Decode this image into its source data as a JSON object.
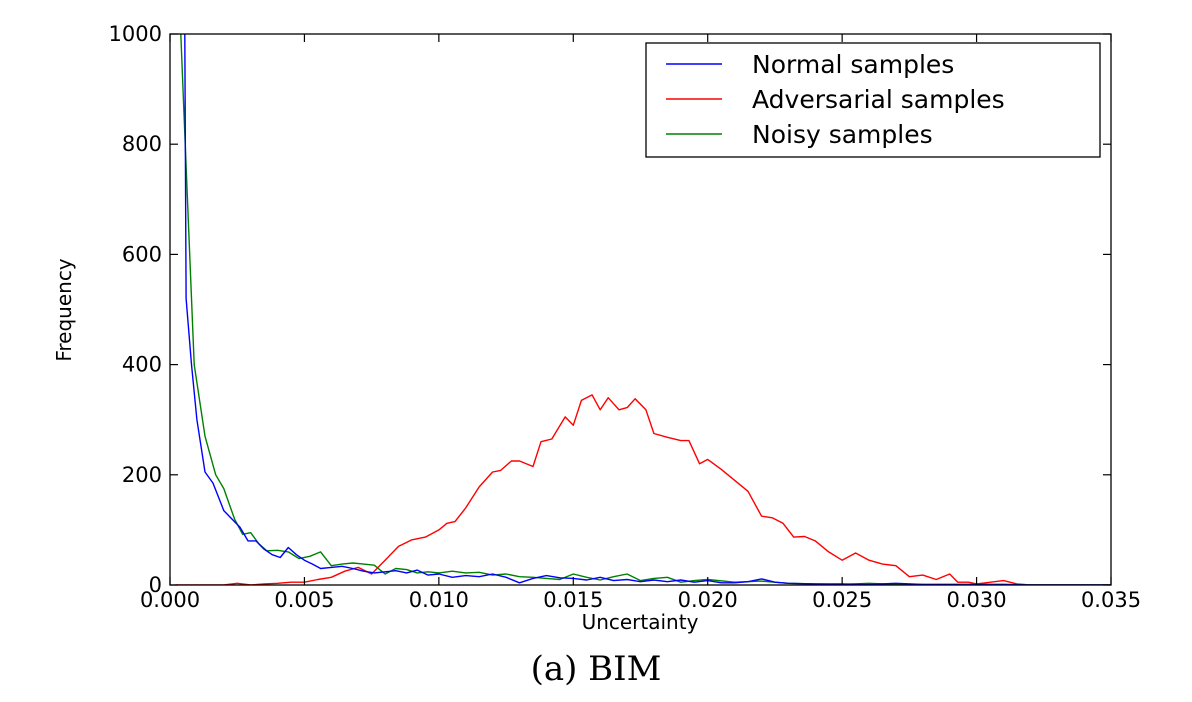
{
  "caption": "(a) BIM",
  "chart_data": {
    "type": "line",
    "title": "",
    "xlabel": "Uncertainty",
    "ylabel": "Frequency",
    "xlim": [
      0.0,
      0.035
    ],
    "ylim": [
      0,
      1000
    ],
    "xticks": [
      0.0,
      0.005,
      0.01,
      0.015,
      0.02,
      0.025,
      0.03,
      0.035
    ],
    "xtick_labels": [
      "0.000",
      "0.005",
      "0.010",
      "0.015",
      "0.020",
      "0.025",
      "0.030",
      "0.035"
    ],
    "yticks": [
      0,
      200,
      400,
      600,
      800,
      1000
    ],
    "ytick_labels": [
      "0",
      "200",
      "400",
      "600",
      "800",
      "1000"
    ],
    "grid": false,
    "legend_position": "top-right",
    "series": [
      {
        "name": "Normal samples",
        "color": "#0000ff",
        "points": [
          [
            0.00055,
            1000
          ],
          [
            0.0006,
            520
          ],
          [
            0.0008,
            400
          ],
          [
            0.001,
            300
          ],
          [
            0.0013,
            205
          ],
          [
            0.0016,
            185
          ],
          [
            0.002,
            135
          ],
          [
            0.0023,
            120
          ],
          [
            0.0026,
            105
          ],
          [
            0.0029,
            80
          ],
          [
            0.0032,
            80
          ],
          [
            0.0035,
            65
          ],
          [
            0.0038,
            55
          ],
          [
            0.0041,
            50
          ],
          [
            0.0044,
            68
          ],
          [
            0.0047,
            55
          ],
          [
            0.005,
            45
          ],
          [
            0.0053,
            38
          ],
          [
            0.0056,
            30
          ],
          [
            0.006,
            32
          ],
          [
            0.0064,
            34
          ],
          [
            0.0068,
            30
          ],
          [
            0.0072,
            25
          ],
          [
            0.0076,
            22
          ],
          [
            0.008,
            24
          ],
          [
            0.0084,
            26
          ],
          [
            0.0088,
            22
          ],
          [
            0.0092,
            27
          ],
          [
            0.0096,
            18
          ],
          [
            0.01,
            20
          ],
          [
            0.0105,
            14
          ],
          [
            0.011,
            17
          ],
          [
            0.0115,
            15
          ],
          [
            0.012,
            20
          ],
          [
            0.0125,
            14
          ],
          [
            0.013,
            4
          ],
          [
            0.0135,
            12
          ],
          [
            0.014,
            17
          ],
          [
            0.0145,
            13
          ],
          [
            0.015,
            12
          ],
          [
            0.0155,
            9
          ],
          [
            0.016,
            14
          ],
          [
            0.0165,
            8
          ],
          [
            0.017,
            10
          ],
          [
            0.0175,
            6
          ],
          [
            0.018,
            9
          ],
          [
            0.0185,
            6
          ],
          [
            0.019,
            9
          ],
          [
            0.0195,
            5
          ],
          [
            0.02,
            8
          ],
          [
            0.0205,
            4
          ],
          [
            0.021,
            4
          ],
          [
            0.0215,
            6
          ],
          [
            0.022,
            11
          ],
          [
            0.0225,
            5
          ],
          [
            0.023,
            3
          ],
          [
            0.024,
            2
          ],
          [
            0.025,
            2
          ],
          [
            0.026,
            1
          ],
          [
            0.027,
            3
          ],
          [
            0.028,
            1
          ],
          [
            0.029,
            1
          ],
          [
            0.03,
            1
          ],
          [
            0.031,
            1
          ],
          [
            0.032,
            0
          ],
          [
            0.033,
            0
          ],
          [
            0.034,
            0
          ],
          [
            0.035,
            0
          ]
        ]
      },
      {
        "name": "Adversarial samples",
        "color": "#ff0000",
        "points": [
          [
            0.0002,
            0
          ],
          [
            0.001,
            0
          ],
          [
            0.0015,
            0
          ],
          [
            0.002,
            0
          ],
          [
            0.0025,
            3
          ],
          [
            0.003,
            0
          ],
          [
            0.0035,
            2
          ],
          [
            0.004,
            3
          ],
          [
            0.0045,
            5
          ],
          [
            0.005,
            5
          ],
          [
            0.0055,
            10
          ],
          [
            0.006,
            14
          ],
          [
            0.0065,
            25
          ],
          [
            0.007,
            32
          ],
          [
            0.0075,
            20
          ],
          [
            0.008,
            45
          ],
          [
            0.0085,
            70
          ],
          [
            0.009,
            82
          ],
          [
            0.0095,
            87
          ],
          [
            0.01,
            100
          ],
          [
            0.0103,
            112
          ],
          [
            0.0106,
            115
          ],
          [
            0.011,
            140
          ],
          [
            0.0115,
            178
          ],
          [
            0.012,
            205
          ],
          [
            0.0123,
            208
          ],
          [
            0.0127,
            225
          ],
          [
            0.013,
            225
          ],
          [
            0.0135,
            215
          ],
          [
            0.0138,
            260
          ],
          [
            0.0142,
            265
          ],
          [
            0.0147,
            305
          ],
          [
            0.015,
            290
          ],
          [
            0.0153,
            335
          ],
          [
            0.0157,
            345
          ],
          [
            0.016,
            318
          ],
          [
            0.0163,
            340
          ],
          [
            0.0167,
            318
          ],
          [
            0.017,
            322
          ],
          [
            0.0173,
            338
          ],
          [
            0.0177,
            318
          ],
          [
            0.018,
            275
          ],
          [
            0.0185,
            268
          ],
          [
            0.019,
            262
          ],
          [
            0.0193,
            262
          ],
          [
            0.0197,
            220
          ],
          [
            0.02,
            228
          ],
          [
            0.0205,
            210
          ],
          [
            0.021,
            190
          ],
          [
            0.0215,
            170
          ],
          [
            0.022,
            125
          ],
          [
            0.0224,
            122
          ],
          [
            0.0228,
            112
          ],
          [
            0.0232,
            87
          ],
          [
            0.0236,
            88
          ],
          [
            0.024,
            80
          ],
          [
            0.0245,
            60
          ],
          [
            0.025,
            45
          ],
          [
            0.0255,
            58
          ],
          [
            0.026,
            45
          ],
          [
            0.0265,
            38
          ],
          [
            0.027,
            35
          ],
          [
            0.0275,
            15
          ],
          [
            0.028,
            18
          ],
          [
            0.0285,
            10
          ],
          [
            0.029,
            20
          ],
          [
            0.0293,
            5
          ],
          [
            0.0297,
            5
          ],
          [
            0.03,
            2
          ],
          [
            0.031,
            8
          ],
          [
            0.0315,
            2
          ],
          [
            0.032,
            0
          ],
          [
            0.033,
            0
          ],
          [
            0.034,
            0
          ],
          [
            0.035,
            0
          ]
        ]
      },
      {
        "name": "Noisy samples",
        "color": "#008000",
        "points": [
          [
            0.0004,
            1000
          ],
          [
            0.0006,
            760
          ],
          [
            0.0009,
            400
          ],
          [
            0.0013,
            270
          ],
          [
            0.0017,
            200
          ],
          [
            0.002,
            175
          ],
          [
            0.0024,
            120
          ],
          [
            0.0027,
            92
          ],
          [
            0.003,
            95
          ],
          [
            0.0033,
            75
          ],
          [
            0.0036,
            62
          ],
          [
            0.004,
            63
          ],
          [
            0.0044,
            60
          ],
          [
            0.0048,
            48
          ],
          [
            0.0052,
            52
          ],
          [
            0.0056,
            60
          ],
          [
            0.006,
            35
          ],
          [
            0.0064,
            38
          ],
          [
            0.0068,
            40
          ],
          [
            0.0072,
            38
          ],
          [
            0.0076,
            36
          ],
          [
            0.008,
            20
          ],
          [
            0.0084,
            30
          ],
          [
            0.0088,
            28
          ],
          [
            0.0092,
            22
          ],
          [
            0.0096,
            24
          ],
          [
            0.01,
            22
          ],
          [
            0.0105,
            25
          ],
          [
            0.011,
            22
          ],
          [
            0.0115,
            23
          ],
          [
            0.012,
            18
          ],
          [
            0.0125,
            20
          ],
          [
            0.013,
            15
          ],
          [
            0.0135,
            14
          ],
          [
            0.014,
            12
          ],
          [
            0.0145,
            10
          ],
          [
            0.015,
            20
          ],
          [
            0.0155,
            14
          ],
          [
            0.016,
            9
          ],
          [
            0.0165,
            15
          ],
          [
            0.017,
            20
          ],
          [
            0.0175,
            8
          ],
          [
            0.018,
            12
          ],
          [
            0.0185,
            14
          ],
          [
            0.019,
            5
          ],
          [
            0.0195,
            8
          ],
          [
            0.02,
            10
          ],
          [
            0.021,
            5
          ],
          [
            0.022,
            7
          ],
          [
            0.0225,
            5
          ],
          [
            0.023,
            3
          ],
          [
            0.024,
            2
          ],
          [
            0.025,
            1
          ],
          [
            0.026,
            3
          ],
          [
            0.027,
            1
          ],
          [
            0.028,
            1
          ],
          [
            0.029,
            1
          ],
          [
            0.03,
            1
          ],
          [
            0.031,
            1
          ],
          [
            0.032,
            0
          ],
          [
            0.033,
            0
          ],
          [
            0.034,
            0
          ],
          [
            0.035,
            0
          ]
        ]
      }
    ]
  }
}
